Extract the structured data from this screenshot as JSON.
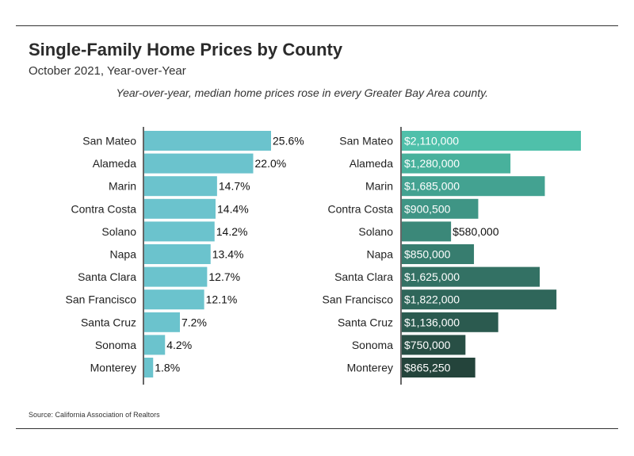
{
  "title": "Single-Family Home Prices by County",
  "subtitle": "October 2021, Year-over-Year",
  "note": "Year-over-year, median home prices rose in every Greater Bay Area county.",
  "source": "Source:  California Association of Realtors",
  "colors": {
    "pct_bar": "#6bc3cd",
    "price_bars": [
      "#4fc0aa",
      "#48b19c",
      "#43a291",
      "#3f9585",
      "#3b8879",
      "#377d6f",
      "#337164",
      "#2f665a",
      "#2b5a4f",
      "#284f45",
      "#24443b"
    ]
  },
  "chart_data": [
    {
      "type": "bar",
      "orientation": "horizontal",
      "categories": [
        "San Mateo",
        "Alameda",
        "Marin",
        "Contra Costa",
        "Solano",
        "Napa",
        "Santa Clara",
        "San Francisco",
        "Santa Cruz",
        "Sonoma",
        "Monterey"
      ],
      "values": [
        25.6,
        22.0,
        14.7,
        14.4,
        14.2,
        13.4,
        12.7,
        12.1,
        7.2,
        4.2,
        1.8
      ],
      "labels": [
        "25.6%",
        "22.0%",
        "14.7%",
        "14.4%",
        "14.2%",
        "13.4%",
        "12.7%",
        "12.1%",
        "7.2%",
        "4.2%",
        "1.8%"
      ],
      "xlim": [
        0,
        25.6
      ]
    },
    {
      "type": "bar",
      "orientation": "horizontal",
      "categories": [
        "San Mateo",
        "Alameda",
        "Marin",
        "Contra Costa",
        "Solano",
        "Napa",
        "Santa Clara",
        "San Francisco",
        "Santa Cruz",
        "Sonoma",
        "Monterey"
      ],
      "values": [
        2110000,
        1280000,
        1685000,
        900500,
        580000,
        850000,
        1625000,
        1822000,
        1136000,
        750000,
        865250
      ],
      "labels": [
        "$2,110,000",
        "$1,280,000",
        "$1,685,000",
        "$900,500",
        "$580,000",
        "$850,000",
        "$1,625,000",
        "$1,822,000",
        "$1,136,000",
        "$750,000",
        "$865,250"
      ],
      "xlim": [
        0,
        2110000
      ]
    }
  ]
}
